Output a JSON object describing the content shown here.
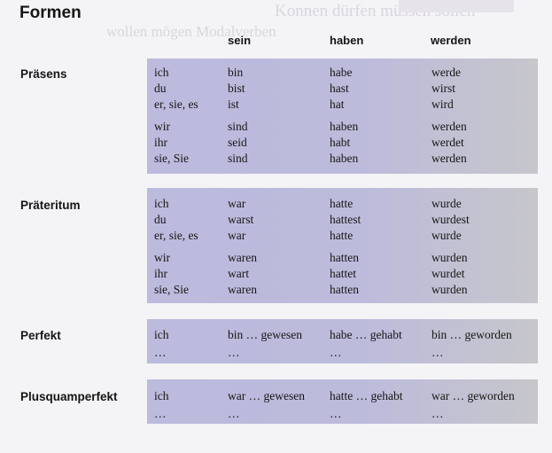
{
  "title": "Formen",
  "background_text": [
    "Konnen dürfen müssen sollen",
    "wollen mögen Modalverben"
  ],
  "columns": [
    "sein",
    "haben",
    "werden"
  ],
  "sections": [
    {
      "label": "Präsens",
      "rows": [
        [
          "ich",
          "bin",
          "habe",
          "werde"
        ],
        [
          "du",
          "bist",
          "hast",
          "wirst"
        ],
        [
          "er, sie, es",
          "ist",
          "hat",
          "wird"
        ],
        [
          "wir",
          "sind",
          "haben",
          "werden"
        ],
        [
          "ihr",
          "seid",
          "habt",
          "werdet"
        ],
        [
          "sie, Sie",
          "sind",
          "haben",
          "werden"
        ]
      ]
    },
    {
      "label": "Präteritum",
      "rows": [
        [
          "ich",
          "war",
          "hatte",
          "wurde"
        ],
        [
          "du",
          "warst",
          "hattest",
          "wurdest"
        ],
        [
          "er, sie, es",
          "war",
          "hatte",
          "wurde"
        ],
        [
          "wir",
          "waren",
          "hatten",
          "wurden"
        ],
        [
          "ihr",
          "wart",
          "hattet",
          "wurdet"
        ],
        [
          "sie, Sie",
          "waren",
          "hatten",
          "wurden"
        ]
      ]
    },
    {
      "label": "Perfekt",
      "rows": [
        [
          "ich",
          "bin … gewesen",
          "habe … gehabt",
          "bin … geworden"
        ],
        [
          "…",
          "…",
          "…",
          "…"
        ]
      ]
    },
    {
      "label": "Plusquamperfekt",
      "rows": [
        [
          "ich",
          "war … gewesen",
          "hatte … gehabt",
          "war … geworden"
        ],
        [
          "…",
          "…",
          "…",
          "…"
        ]
      ]
    }
  ],
  "colors": {
    "block": "#bcbadd",
    "text": "#151515",
    "page": "#f4f3f6"
  }
}
